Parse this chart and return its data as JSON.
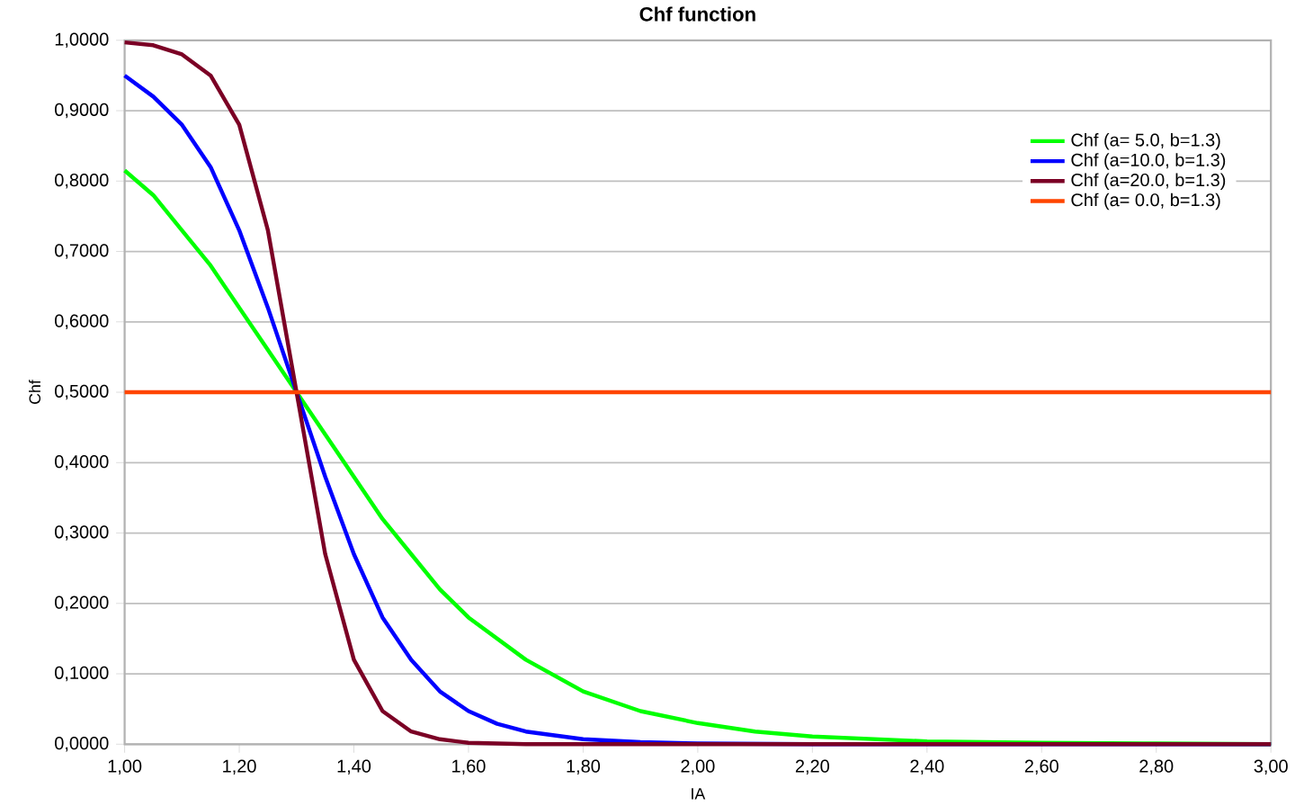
{
  "chart_data": {
    "type": "line",
    "title": "Chf function",
    "xlabel": "IA",
    "ylabel": "Chf",
    "xlim": [
      1,
      3
    ],
    "ylim": [
      0,
      1
    ],
    "xticks": [
      {
        "value": 1,
        "label": "1,00"
      },
      {
        "value": 1.2,
        "label": "1,20"
      },
      {
        "value": 1.4,
        "label": "1,40"
      },
      {
        "value": 1.6,
        "label": "1,60"
      },
      {
        "value": 1.8,
        "label": "1,80"
      },
      {
        "value": 2,
        "label": "2,00"
      },
      {
        "value": 2.2,
        "label": "2,20"
      },
      {
        "value": 2.4,
        "label": "2,40"
      },
      {
        "value": 2.6,
        "label": "2,60"
      },
      {
        "value": 2.8,
        "label": "2,80"
      },
      {
        "value": 3,
        "label": "3,00"
      }
    ],
    "yticks": [
      {
        "value": 0,
        "label": "0,0000"
      },
      {
        "value": 0.1,
        "label": "0,1000"
      },
      {
        "value": 0.2,
        "label": "0,2000"
      },
      {
        "value": 0.3,
        "label": "0,3000"
      },
      {
        "value": 0.4,
        "label": "0,4000"
      },
      {
        "value": 0.5,
        "label": "0,5000"
      },
      {
        "value": 0.6,
        "label": "0,6000"
      },
      {
        "value": 0.7,
        "label": "0,7000"
      },
      {
        "value": 0.8,
        "label": "0,8000"
      },
      {
        "value": 0.9,
        "label": "0,9000"
      },
      {
        "value": 1,
        "label": "1,0000"
      }
    ],
    "grid": "y",
    "legend": "right",
    "marker": "none",
    "line_style": "solid",
    "series": [
      {
        "name": "Chf (a= 5.0, b=1.3)",
        "color": "#00ff00",
        "x": [
          1.0,
          1.05,
          1.1,
          1.15,
          1.2,
          1.25,
          1.3,
          1.35,
          1.4,
          1.45,
          1.5,
          1.55,
          1.6,
          1.7,
          1.8,
          1.9,
          2.0,
          2.1,
          2.2,
          2.4,
          2.6,
          2.8,
          3.0
        ],
        "values": [
          0.815,
          0.78,
          0.73,
          0.68,
          0.62,
          0.56,
          0.5,
          0.44,
          0.38,
          0.32,
          0.27,
          0.22,
          0.18,
          0.12,
          0.075,
          0.047,
          0.03,
          0.018,
          0.011,
          0.004,
          0.002,
          0.001,
          0.0
        ]
      },
      {
        "name": "Chf (a=10.0, b=1.3)",
        "color": "#0000ff",
        "x": [
          1.0,
          1.05,
          1.1,
          1.15,
          1.2,
          1.25,
          1.3,
          1.35,
          1.4,
          1.45,
          1.5,
          1.55,
          1.6,
          1.65,
          1.7,
          1.8,
          1.9,
          2.0,
          2.2,
          3.0
        ],
        "values": [
          0.95,
          0.92,
          0.88,
          0.82,
          0.73,
          0.62,
          0.5,
          0.38,
          0.27,
          0.18,
          0.12,
          0.075,
          0.047,
          0.029,
          0.018,
          0.007,
          0.003,
          0.001,
          0.0,
          0.0
        ]
      },
      {
        "name": "Chf (a=20.0, b=1.3)",
        "color": "#7b0025",
        "x": [
          1.0,
          1.05,
          1.1,
          1.15,
          1.2,
          1.25,
          1.3,
          1.35,
          1.4,
          1.45,
          1.5,
          1.55,
          1.6,
          1.7,
          3.0
        ],
        "values": [
          0.997,
          0.993,
          0.98,
          0.95,
          0.88,
          0.73,
          0.5,
          0.27,
          0.12,
          0.047,
          0.018,
          0.007,
          0.002,
          0.0,
          0.0
        ]
      },
      {
        "name": "Chf (a= 0.0, b=1.3)",
        "color": "#ff4500",
        "x": [
          1.0,
          3.0
        ],
        "values": [
          0.5,
          0.5
        ]
      }
    ]
  }
}
